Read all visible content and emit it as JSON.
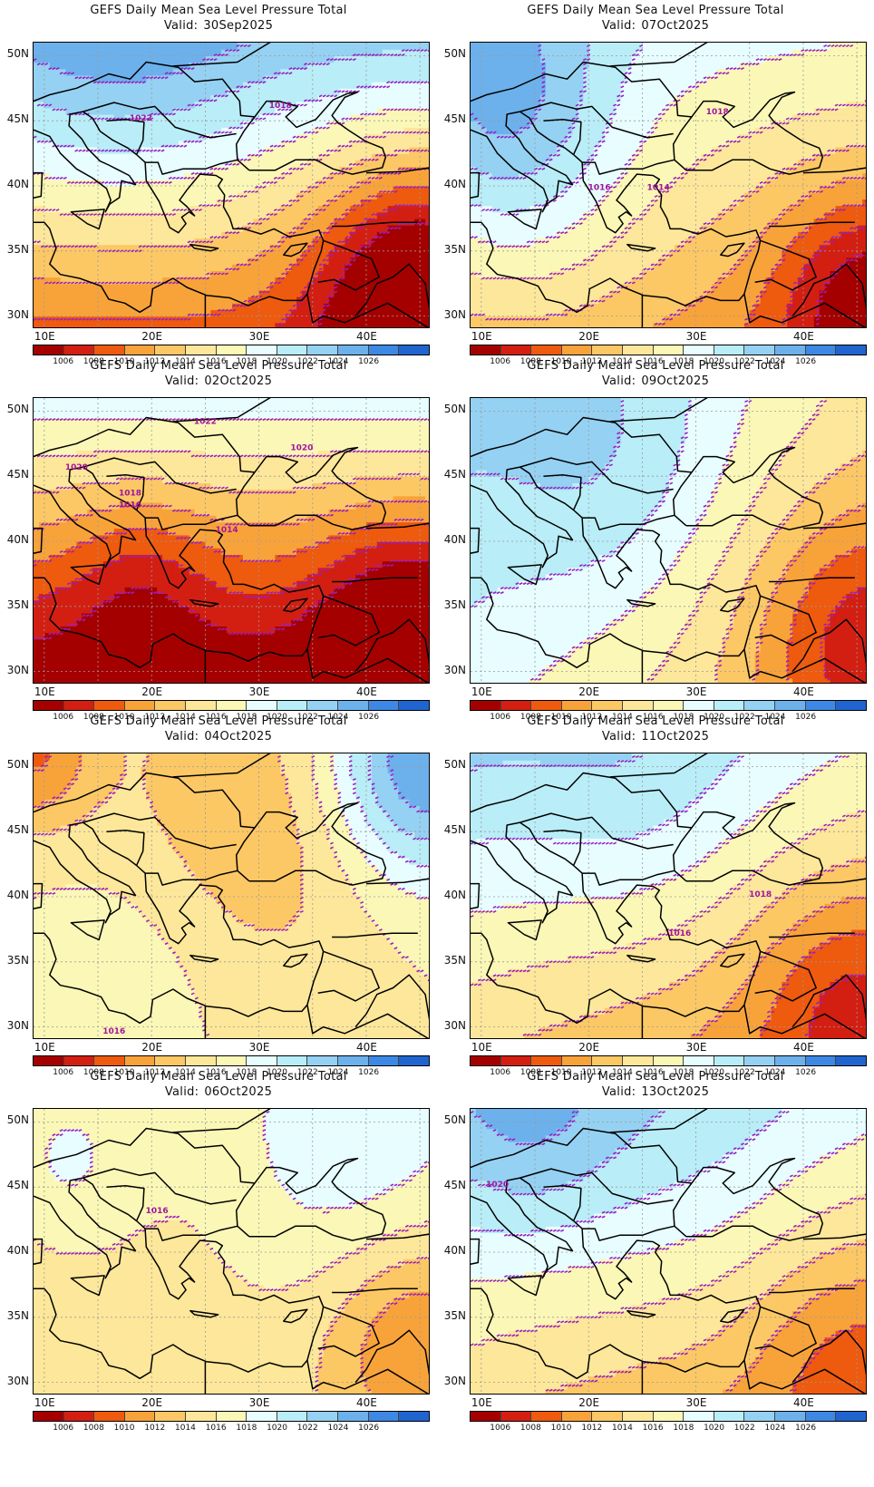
{
  "panels": [
    {
      "title": "GEFS Daily Mean Sea Level Pressure Total",
      "valid_label": "Valid:",
      "valid_date": "30Sep2025",
      "field": {
        "base": 1016,
        "grad_lon": 0.0,
        "grad_lat": 0.62,
        "centers": [
          {
            "lon": 45,
            "lat": 33,
            "amp": -10,
            "r": 7
          },
          {
            "lon": 17,
            "lat": 49,
            "amp": 3,
            "r": 9
          }
        ]
      },
      "isobar_labels": [
        {
          "text": "1022",
          "lon": 19,
          "lat": 45
        },
        {
          "text": "1018",
          "lon": 32,
          "lat": 46
        }
      ]
    },
    {
      "title": "GEFS Daily Mean Sea Level Pressure Total",
      "valid_label": "Valid:",
      "valid_date": "07Oct2025",
      "field": {
        "base": 1015,
        "grad_lon": -0.05,
        "grad_lat": 0.35,
        "centers": [
          {
            "lon": 46,
            "lat": 32,
            "amp": -7,
            "r": 6
          },
          {
            "lon": 12,
            "lat": 46,
            "amp": 6,
            "r": 7
          },
          {
            "lon": 16,
            "lat": 36,
            "amp": 2,
            "r": 8
          }
        ]
      },
      "isobar_labels": [
        {
          "text": "1018",
          "lon": 32,
          "lat": 45.5
        },
        {
          "text": "1016",
          "lon": 21,
          "lat": 39.7
        },
        {
          "text": "1014",
          "lon": 26.5,
          "lat": 39.7
        }
      ]
    },
    {
      "title": "GEFS Daily Mean Sea Level Pressure Total",
      "valid_label": "Valid:",
      "valid_date": "02Oct2025",
      "field": {
        "base": 1011.5,
        "grad_lon": 0.0,
        "grad_lat": 0.7,
        "centers": [
          {
            "lon": 44,
            "lat": 34,
            "amp": -6,
            "r": 6
          },
          {
            "lon": 19,
            "lat": 37,
            "amp": -3,
            "r": 5
          }
        ]
      },
      "isobar_labels": [
        {
          "text": "1022",
          "lon": 25,
          "lat": 49
        },
        {
          "text": "1020",
          "lon": 34,
          "lat": 47
        },
        {
          "text": "1020",
          "lon": 13,
          "lat": 45.5
        },
        {
          "text": "1018",
          "lon": 18,
          "lat": 43.5
        },
        {
          "text": "1016",
          "lon": 18,
          "lat": 42.6
        },
        {
          "text": "1014",
          "lon": 27,
          "lat": 40.7
        }
      ]
    },
    {
      "title": "GEFS Daily Mean Sea Level Pressure Total",
      "valid_label": "Valid:",
      "valid_date": "09Oct2025",
      "field": {
        "base": 1017,
        "grad_lon": -0.18,
        "grad_lat": 0.15,
        "centers": [
          {
            "lon": 45,
            "lat": 33,
            "amp": -6,
            "r": 7
          },
          {
            "lon": 22,
            "lat": 46,
            "amp": 3,
            "r": 8
          }
        ]
      },
      "isobar_labels": []
    },
    {
      "title": "GEFS Daily Mean Sea Level Pressure Total",
      "valid_label": "Valid:",
      "valid_date": "04Oct2025",
      "field": {
        "base": 1016,
        "grad_lon": 0.0,
        "grad_lat": 0.0,
        "centers": [
          {
            "lon": 28,
            "lat": 45,
            "amp": -4,
            "r": 9
          },
          {
            "lon": 45,
            "lat": 50,
            "amp": 10,
            "r": 6
          },
          {
            "lon": 9,
            "lat": 51,
            "amp": -6,
            "r": 4
          },
          {
            "lon": 20,
            "lat": 37,
            "amp": 2,
            "r": 7
          }
        ]
      },
      "isobar_labels": [
        {
          "text": "1016",
          "lon": 16.5,
          "lat": 29.5
        }
      ]
    },
    {
      "title": "GEFS Daily Mean Sea Level Pressure Total",
      "valid_label": "Valid:",
      "valid_date": "11Oct2025",
      "field": {
        "base": 1016,
        "grad_lon": -0.12,
        "grad_lat": 0.35,
        "centers": [
          {
            "lon": 44,
            "lat": 33,
            "amp": -4,
            "r": 6
          },
          {
            "lon": 25,
            "lat": 47,
            "amp": 2,
            "r": 8
          }
        ]
      },
      "isobar_labels": [
        {
          "text": "1018",
          "lon": 36,
          "lat": 40
        },
        {
          "text": "1016",
          "lon": 28.5,
          "lat": 37
        }
      ]
    },
    {
      "title": "GEFS Daily Mean Sea Level Pressure Total",
      "valid_label": "Valid:",
      "valid_date": "06Oct2025",
      "field": {
        "base": 1015.5,
        "grad_lon": 0.04,
        "grad_lat": 0.05,
        "centers": [
          {
            "lon": 45,
            "lat": 33,
            "amp": -6,
            "r": 6
          },
          {
            "lon": 38,
            "lat": 48,
            "amp": 3,
            "r": 8
          },
          {
            "lon": 12,
            "lat": 47,
            "amp": 3,
            "r": 5
          }
        ]
      },
      "isobar_labels": [
        {
          "text": "1016",
          "lon": 20.5,
          "lat": 43
        }
      ]
    },
    {
      "title": "GEFS Daily Mean Sea Level Pressure Total",
      "valid_label": "Valid:",
      "valid_date": "13Oct2025",
      "field": {
        "base": 1016.5,
        "grad_lon": -0.1,
        "grad_lat": 0.35,
        "centers": [
          {
            "lon": 44,
            "lat": 33,
            "amp": -3,
            "r": 6
          },
          {
            "lon": 15,
            "lat": 49,
            "amp": 3,
            "r": 6
          },
          {
            "lon": 30,
            "lat": 46,
            "amp": 1.5,
            "r": 8
          }
        ]
      },
      "isobar_labels": [
        {
          "text": "1020",
          "lon": 11.5,
          "lat": 45
        }
      ]
    }
  ],
  "axes": {
    "x_ticks": [
      {
        "lon": 10,
        "label": "10E"
      },
      {
        "lon": 20,
        "label": "20E"
      },
      {
        "lon": 30,
        "label": "30E"
      },
      {
        "lon": 40,
        "label": "40E"
      }
    ],
    "y_ticks": [
      {
        "lat": 50,
        "label": "50N"
      },
      {
        "lat": 45,
        "label": "45N"
      },
      {
        "lat": 40,
        "label": "40N"
      },
      {
        "lat": 35,
        "label": "35N"
      },
      {
        "lat": 30,
        "label": "30N"
      }
    ],
    "lon_range": [
      9,
      46
    ],
    "lat_range": [
      29,
      51
    ]
  },
  "colorbar": {
    "labels": [
      "1006",
      "1008",
      "1010",
      "1012",
      "1014",
      "1016",
      "1018",
      "1020",
      "1022",
      "1024",
      "1026"
    ],
    "levels": [
      1006,
      1008,
      1010,
      1012,
      1014,
      1016,
      1018,
      1020,
      1022,
      1024,
      1026
    ],
    "colors": [
      "#a50000",
      "#d31f12",
      "#ee5a0e",
      "#f8a33a",
      "#fcc865",
      "#fde79a",
      "#fbf7b6",
      "#e7fdff",
      "#b9edf7",
      "#95d1f2",
      "#6cb1ec",
      "#3d88e4",
      "#2065cf"
    ]
  },
  "styles": {
    "isobar_color": "#9a1ec2",
    "label_color": "#a2159f",
    "coast_color": "#000000",
    "grid_color": "#9a9a9a"
  }
}
